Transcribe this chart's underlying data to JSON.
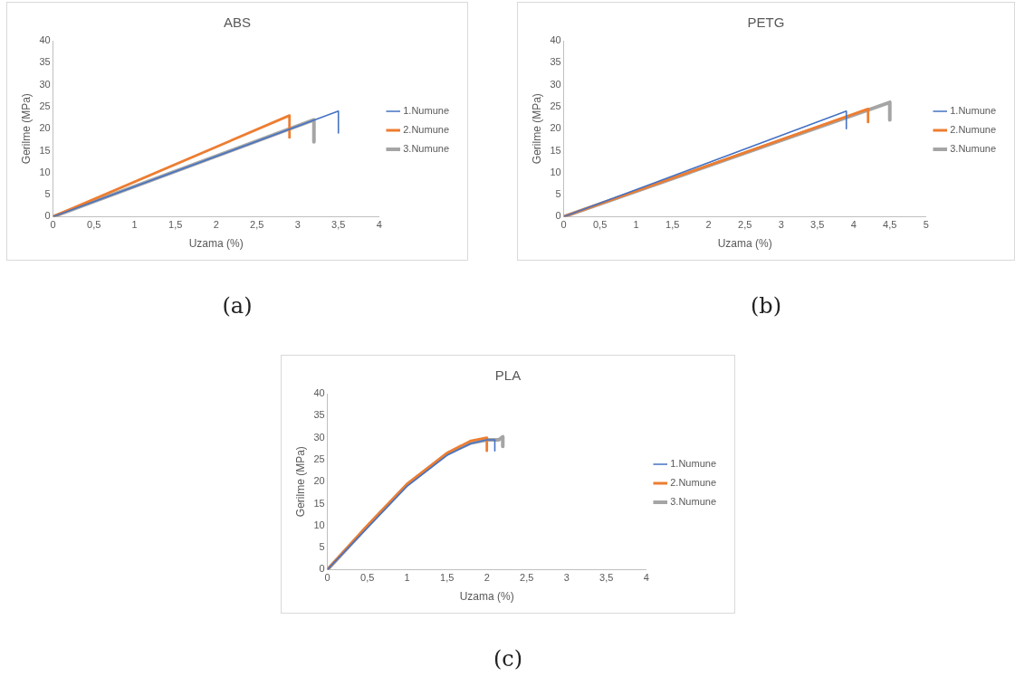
{
  "chart_data": [
    {
      "type": "line",
      "title": "ABS",
      "xlabel": "Uzama (%)",
      "ylabel": "Gerilme (MPa)",
      "xlim": [
        0,
        4
      ],
      "ylim": [
        0,
        40
      ],
      "xticks": [
        0,
        {
          "value": 0.5,
          "label": "0,5"
        },
        1,
        {
          "value": 1.5,
          "label": "1,5"
        },
        2,
        {
          "value": 2.5,
          "label": "2,5"
        },
        3,
        {
          "value": 3.5,
          "label": "3,5"
        },
        4
      ],
      "yticks": [
        0,
        5,
        10,
        15,
        20,
        25,
        30,
        35,
        40
      ],
      "grid": false,
      "legend": "right",
      "marker": "none",
      "annotations": [
        "(a)"
      ],
      "series": [
        {
          "name": "1.Numune",
          "color": "#4472c4",
          "x": [
            0,
            3.5,
            3.5
          ],
          "values": [
            0,
            24,
            19
          ]
        },
        {
          "name": "2.Numune",
          "color": "#ed7d31",
          "x": [
            0,
            2.9,
            2.9
          ],
          "values": [
            0,
            23,
            18
          ]
        },
        {
          "name": "3.Numune",
          "color": "#a5a5a5",
          "x": [
            0,
            3.2,
            3.2
          ],
          "values": [
            0,
            22,
            17
          ]
        }
      ]
    },
    {
      "type": "line",
      "title": "PETG",
      "xlabel": "Uzama (%)",
      "ylabel": "Gerilme (MPa)",
      "xlim": [
        0,
        5
      ],
      "ylim": [
        0,
        40
      ],
      "xticks": [
        0,
        {
          "value": 0.5,
          "label": "0,5"
        },
        1,
        {
          "value": 1.5,
          "label": "1,5"
        },
        2,
        {
          "value": 2.5,
          "label": "2,5"
        },
        3,
        {
          "value": 3.5,
          "label": "3,5"
        },
        4,
        {
          "value": 4.5,
          "label": "4,5"
        },
        5
      ],
      "yticks": [
        0,
        5,
        10,
        15,
        20,
        25,
        30,
        35,
        40
      ],
      "grid": false,
      "legend": "right",
      "marker": "none",
      "annotations": [
        "(b)"
      ],
      "series": [
        {
          "name": "1.Numune",
          "color": "#4472c4",
          "x": [
            0,
            3.9,
            3.9
          ],
          "values": [
            0,
            24,
            20
          ]
        },
        {
          "name": "2.Numune",
          "color": "#ed7d31",
          "x": [
            0,
            4.2,
            4.2
          ],
          "values": [
            0,
            24.5,
            21.5
          ]
        },
        {
          "name": "3.Numune",
          "color": "#a5a5a5",
          "x": [
            0,
            4.5,
            4.5
          ],
          "values": [
            0,
            26,
            22
          ]
        }
      ]
    },
    {
      "type": "line",
      "title": "PLA",
      "xlabel": "Uzama (%)",
      "ylabel": "Gerilme (MPa)",
      "xlim": [
        0,
        4
      ],
      "ylim": [
        0,
        40
      ],
      "xticks": [
        0,
        {
          "value": 0.5,
          "label": "0,5"
        },
        1,
        {
          "value": 1.5,
          "label": "1,5"
        },
        2,
        {
          "value": 2.5,
          "label": "2,5"
        },
        3,
        {
          "value": 3.5,
          "label": "3,5"
        },
        4
      ],
      "yticks": [
        0,
        5,
        10,
        15,
        20,
        25,
        30,
        35,
        40
      ],
      "grid": false,
      "legend": "right",
      "marker": "none",
      "annotations": [
        "(c)"
      ],
      "series": [
        {
          "name": "1.Numune",
          "color": "#4472c4",
          "x": [
            0,
            0.5,
            1,
            1.5,
            1.8,
            2,
            2.1,
            2.1
          ],
          "values": [
            0,
            9.5,
            19,
            26,
            28.7,
            29.5,
            29.5,
            27
          ]
        },
        {
          "name": "2.Numune",
          "color": "#ed7d31",
          "x": [
            0,
            0.5,
            1,
            1.5,
            1.8,
            2,
            2,
            2
          ],
          "values": [
            0,
            10,
            19.5,
            26.5,
            29.3,
            30,
            30,
            27
          ]
        },
        {
          "name": "3.Numune",
          "color": "#a5a5a5",
          "x": [
            0,
            0.5,
            1,
            1.5,
            1.8,
            2,
            2.15,
            2.2,
            2.2
          ],
          "values": [
            0,
            9.8,
            19.3,
            26.3,
            28.8,
            29.5,
            29.5,
            30.2,
            28
          ]
        }
      ]
    }
  ]
}
